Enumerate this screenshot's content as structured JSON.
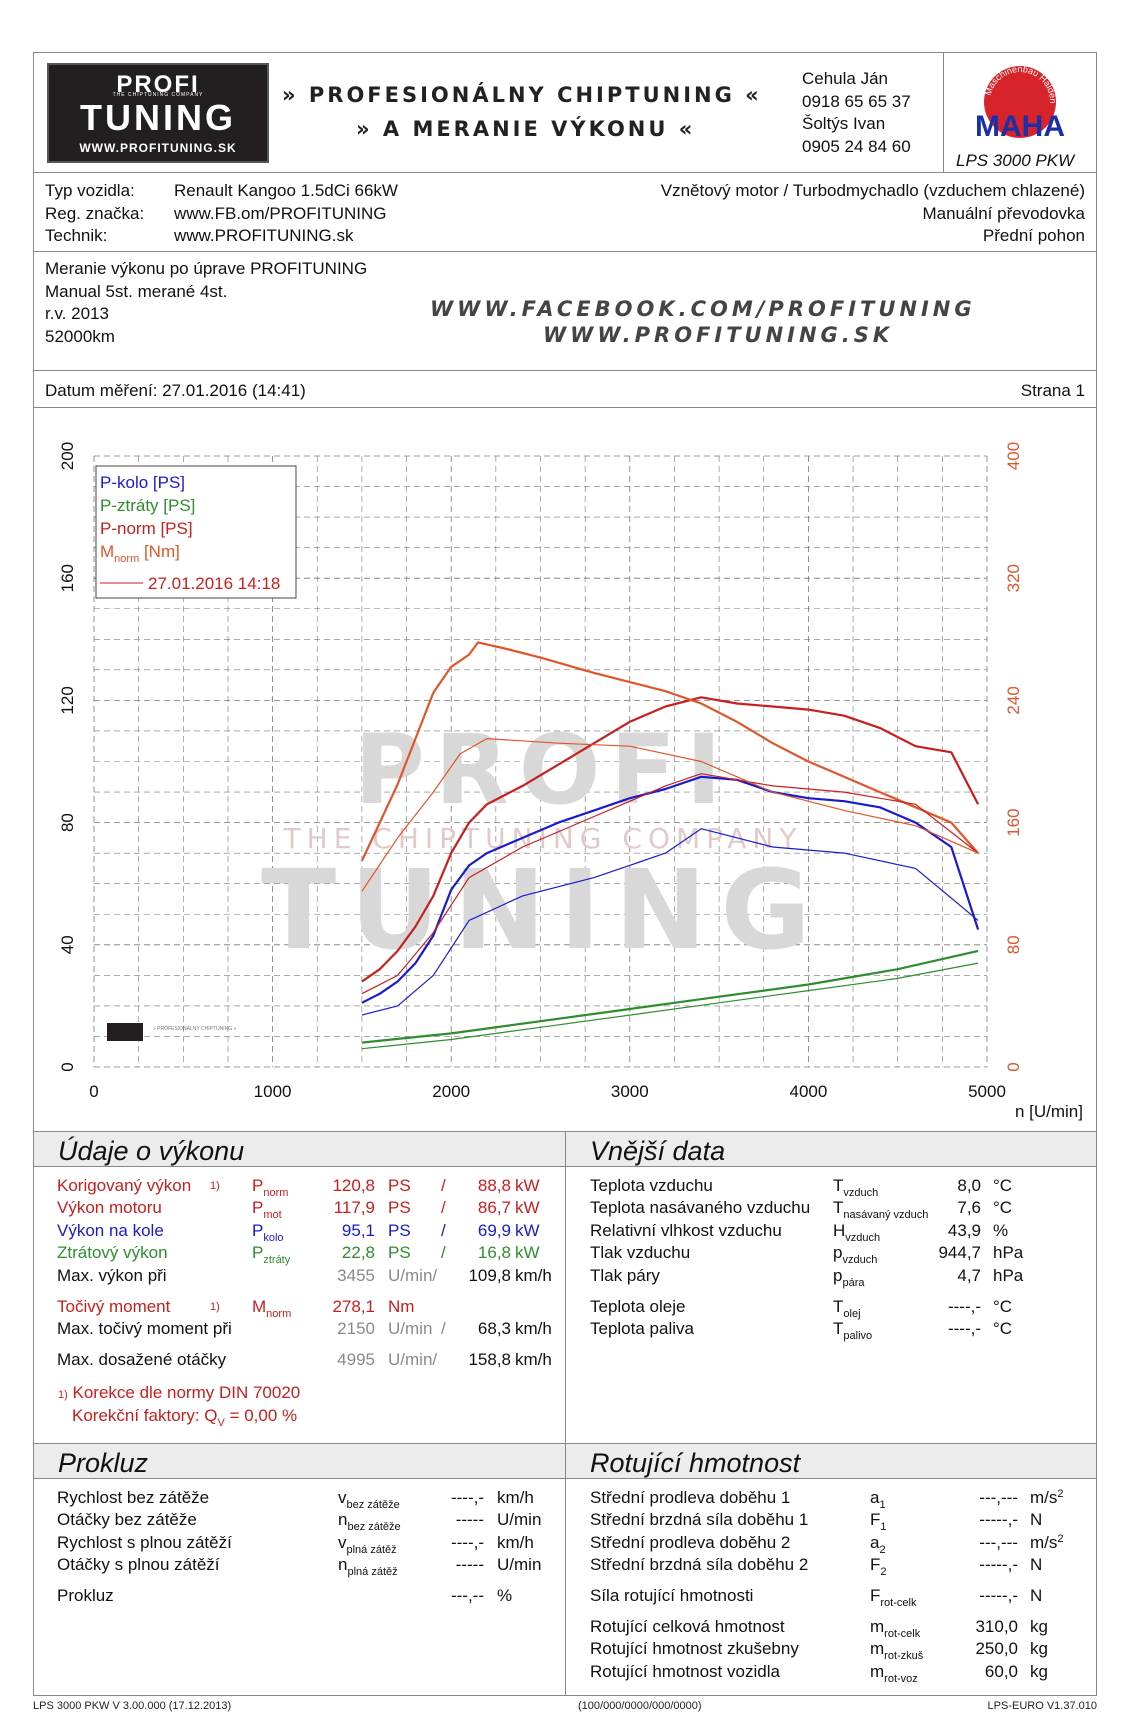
{
  "header": {
    "logo": {
      "line1": "PROFI",
      "line2": "THE CHIPTUNING COMPANY",
      "line3": "TUNING",
      "url": "WWW.PROFITUNING.SK"
    },
    "slogan_line1": "» PROFESIONÁLNY CHIPTUNING «",
    "slogan_line2": "» A MERANIE VÝKONU «",
    "contacts": [
      "Cehula Ján",
      "0918 65 65 37",
      "Šoltýs Ivan",
      "0905 24 84 60"
    ],
    "maha": {
      "text": "MAHA",
      "arc": "Maschinenbau Haldenwang",
      "model": "LPS 3000 PKW"
    }
  },
  "vehicle": {
    "labels": [
      "Typ vozidla:",
      "Reg. značka:",
      "Technik:"
    ],
    "values": [
      "Renault Kangoo 1.5dCi 66kW",
      "www.FB.om/PROFITUNING",
      "www.PROFITUNING.sk"
    ],
    "right": [
      "Vznětový motor / Turbodmychadlo (vzduchem chlazené)",
      "Manuální převodovka",
      "Přední pohon"
    ]
  },
  "notes": {
    "lines": [
      "Meranie výkonu po úprave PROFITUNING",
      "Manual 5st. merané 4st.",
      "r.v. 2013",
      "52000km"
    ],
    "web1": "WWW.FACEBOOK.COM/PROFITUNING",
    "web2": "WWW.PROFITUNING.SK"
  },
  "date_row": {
    "date": "Datum měření: 27.01.2016 (14:41)",
    "page": "Strana 1"
  },
  "chart_data": {
    "type": "line",
    "xlabel": "n [U/min]",
    "xlim": [
      0,
      5000
    ],
    "ylim_left": [
      0,
      200
    ],
    "ylim_right": [
      0,
      400
    ],
    "x_ticks": [
      "0",
      "1000",
      "2000",
      "3000",
      "4000",
      "5000"
    ],
    "y_left_ticks": [
      "0",
      "40",
      "80",
      "120",
      "160",
      "200"
    ],
    "y_right_ticks": [
      "0",
      "80",
      "160",
      "240",
      "320",
      "400"
    ],
    "legend": [
      "P-kolo [PS]",
      "P-ztráty [PS]",
      "P-norm [PS]",
      "M",
      "norm",
      " [Nm]",
      "27.01.2016 14:18"
    ],
    "legend_position": "top-left",
    "watermark": {
      "line1": "PROFI",
      "line2": "THE CHIPTUNING COMPANY",
      "line3": "TUNING"
    },
    "colors": {
      "P-kolo": "#1a1acf",
      "P-ztrati": "#2f8d2f",
      "P-norm": "#c81e1e",
      "Mnorm": "#e0552a"
    },
    "series": [
      {
        "name": "P-kolo [PS]",
        "axis": "left",
        "x": [
          1500,
          1600,
          1700,
          1800,
          1900,
          2000,
          2100,
          2200,
          2400,
          2600,
          2800,
          3000,
          3200,
          3400,
          3600,
          3800,
          4000,
          4200,
          4400,
          4600,
          4800,
          4950
        ],
        "y": [
          21,
          24,
          28,
          34,
          43,
          58,
          66,
          70,
          75,
          80,
          84,
          88,
          91,
          95,
          94,
          90,
          88,
          87,
          85,
          80,
          72,
          45
        ]
      },
      {
        "name": "P-ztráty [PS]",
        "axis": "left",
        "x": [
          1500,
          2000,
          2500,
          3000,
          3500,
          4000,
          4500,
          4950
        ],
        "y": [
          8,
          11,
          15,
          19,
          23,
          27,
          32,
          38
        ]
      },
      {
        "name": "P-norm [PS]",
        "axis": "left",
        "x": [
          1500,
          1600,
          1700,
          1800,
          1900,
          2000,
          2100,
          2200,
          2400,
          2600,
          2800,
          3000,
          3200,
          3400,
          3600,
          3800,
          4000,
          4200,
          4400,
          4600,
          4800,
          4950
        ],
        "y": [
          28,
          32,
          38,
          46,
          56,
          70,
          80,
          86,
          92,
          99,
          106,
          113,
          118,
          121,
          119,
          118,
          117,
          115,
          111,
          105,
          103,
          86
        ]
      },
      {
        "name": "Mnorm [Nm]",
        "axis": "right",
        "x": [
          1500,
          1600,
          1700,
          1800,
          1900,
          2000,
          2100,
          2150,
          2300,
          2500,
          2800,
          3000,
          3200,
          3400,
          3600,
          3800,
          4000,
          4200,
          4400,
          4600,
          4800,
          4950
        ],
        "y": [
          135,
          160,
          185,
          215,
          245,
          262,
          270,
          278,
          274,
          268,
          258,
          252,
          246,
          238,
          226,
          212,
          200,
          190,
          180,
          170,
          160,
          140
        ]
      },
      {
        "name": "P-kolo reference",
        "axis": "left",
        "x": [
          1500,
          1700,
          1900,
          2100,
          2400,
          2800,
          3200,
          3400,
          3800,
          4200,
          4600,
          4950
        ],
        "y": [
          17,
          20,
          30,
          48,
          56,
          62,
          70,
          78,
          72,
          70,
          65,
          48
        ]
      },
      {
        "name": "P-ztráty reference",
        "axis": "left",
        "x": [
          1500,
          2000,
          2500,
          3000,
          3500,
          4000,
          4500,
          4950
        ],
        "y": [
          6,
          9,
          13,
          17,
          21,
          25,
          29,
          34
        ]
      },
      {
        "name": "P-norm reference",
        "axis": "left",
        "x": [
          1500,
          1700,
          1900,
          2100,
          2400,
          2800,
          3200,
          3400,
          3800,
          4200,
          4600,
          4950
        ],
        "y": [
          24,
          30,
          44,
          62,
          72,
          82,
          92,
          96,
          92,
          90,
          86,
          70
        ]
      },
      {
        "name": "Mnorm reference",
        "axis": "right",
        "x": [
          1500,
          1700,
          1900,
          2050,
          2200,
          2600,
          3000,
          3400,
          3800,
          4200,
          4600,
          4950
        ],
        "y": [
          115,
          150,
          180,
          205,
          215,
          212,
          210,
          200,
          180,
          168,
          158,
          140
        ]
      }
    ]
  },
  "performance": {
    "title": "Údaje o výkonu",
    "rows": [
      {
        "label": "Korigovaný výkon",
        "note": "1)",
        "sym": "P",
        "sub": "norm",
        "v1": "120,8",
        "u1": "PS",
        "sep": "/",
        "v2": "88,8",
        "u2": "kW"
      },
      {
        "label": "Výkon motoru",
        "sym": "P",
        "sub": "mot",
        "v1": "117,9",
        "u1": "PS",
        "sep": "/",
        "v2": "86,7",
        "u2": "kW"
      },
      {
        "label": "Výkon na kole",
        "sym": "P",
        "sub": "kolo",
        "v1": "95,1",
        "u1": "PS",
        "sep": "/",
        "v2": "69,9",
        "u2": "kW"
      },
      {
        "label": "Ztrátový výkon",
        "sym": "P",
        "sub": "ztráty",
        "v1": "22,8",
        "u1": "PS",
        "sep": "/",
        "v2": "16,8",
        "u2": "kW"
      },
      {
        "label": "Max. výkon při",
        "v1": "3455",
        "u1": "U/min/",
        "v2": "109,8",
        "u2": "km/h"
      },
      {
        "label": "Točivý moment",
        "note": "1)",
        "sym": "M",
        "sub": "norm",
        "v1": "278,1",
        "u1": "Nm"
      },
      {
        "label": "Max. točivý moment při",
        "v1": "2150",
        "u1": "U/min",
        "sep": "/",
        "v2": "68,3",
        "u2": "km/h"
      },
      {
        "label": "Max. dosažené otáčky",
        "v1": "4995",
        "u1": "U/min/",
        "v2": "158,8",
        "u2": "km/h"
      }
    ],
    "note1": "Korekce dle normy DIN 70020",
    "note_marker": "1)",
    "note2": "Korekční faktory: Q",
    "note2_sub": "V",
    "note2_val": " =   0,00 %"
  },
  "external": {
    "title": "Vnější data",
    "rows": [
      {
        "label": "Teplota vzduchu",
        "sym": "T",
        "sub": "vzduch",
        "val": "8,0",
        "unit": "°C"
      },
      {
        "label": "Teplota nasávaného vzduchu",
        "sym": "T",
        "sub": "nasávaný vzduch",
        "val": "7,6",
        "unit": "°C"
      },
      {
        "label": "Relativní vlhkost vzduchu",
        "sym": "H",
        "sub": "vzduch",
        "val": "43,9",
        "unit": "%"
      },
      {
        "label": "Tlak vzduchu",
        "sym": "p",
        "sub": "vzduch",
        "val": "944,7",
        "unit": "hPa"
      },
      {
        "label": "Tlak páry",
        "sym": "p",
        "sub": "pára",
        "val": "4,7",
        "unit": "hPa"
      },
      {
        "label": "Teplota oleje",
        "sym": "T",
        "sub": "olej",
        "val": "----,-",
        "unit": "°C"
      },
      {
        "label": "Teplota paliva",
        "sym": "T",
        "sub": "palivo",
        "val": "----,-",
        "unit": "°C"
      }
    ]
  },
  "slip": {
    "title": "Prokluz",
    "rows": [
      {
        "label": "Rychlost bez zátěže",
        "sym": "v",
        "sub": "bez zátěže",
        "val": "----,-",
        "unit": "km/h"
      },
      {
        "label": "Otáčky bez zátěže",
        "sym": "n",
        "sub": "bez zátěže",
        "val": "-----",
        "unit": "U/min"
      },
      {
        "label": "Rychlost s plnou zátěží",
        "sym": "v",
        "sub": "plná zátěž",
        "val": "----,-",
        "unit": "km/h"
      },
      {
        "label": "Otáčky s plnou zátěží",
        "sym": "n",
        "sub": "plná zátěž",
        "val": "-----",
        "unit": "U/min"
      },
      {
        "label": "Prokluz",
        "val": "---,--",
        "unit": "%"
      }
    ]
  },
  "rotating": {
    "title": "Rotující hmotnost",
    "rows": [
      {
        "label": "Střední prodleva doběhu 1",
        "sym": "a",
        "sub": "1",
        "val": "---,---",
        "unit": "m/s",
        "sup": "2"
      },
      {
        "label": "Střední brzdná síla doběhu 1",
        "sym": "F",
        "sub": "1",
        "val": "-----,-",
        "unit": "N"
      },
      {
        "label": "Střední prodleva doběhu 2",
        "sym": "a",
        "sub": "2",
        "val": "---,---",
        "unit": "m/s",
        "sup": "2"
      },
      {
        "label": "Střední brzdná síla doběhu 2",
        "sym": "F",
        "sub": "2",
        "val": "-----,-",
        "unit": "N"
      },
      {
        "label": "Síla rotující hmotnosti",
        "sym": "F",
        "sub": "rot-celk",
        "val": "-----,-",
        "unit": "N"
      },
      {
        "label": "Rotující celková hmotnost",
        "sym": "m",
        "sub": "rot-celk",
        "val": "310,0",
        "unit": "kg"
      },
      {
        "label": "Rotující hmotnost zkušebny",
        "sym": "m",
        "sub": "rot-zkuš",
        "val": "250,0",
        "unit": "kg"
      },
      {
        "label": "Rotující hmotnost vozidla",
        "sym": "m",
        "sub": "rot-voz",
        "val": "60,0",
        "unit": "kg"
      }
    ]
  },
  "footer": {
    "left": "LPS 3000 PKW V 3.00.000 (17.12.2013)",
    "center": "(100/000/0000/000/0000)",
    "right": "LPS-EURO V1.37.010"
  }
}
